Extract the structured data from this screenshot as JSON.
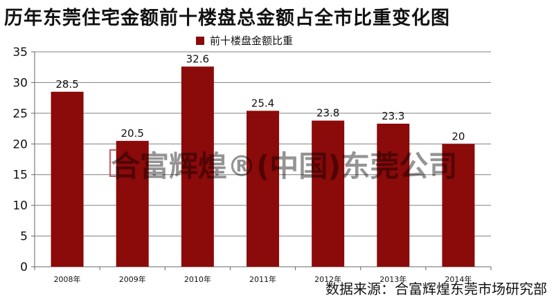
{
  "page": {
    "title": "历年东莞住宅金额前十楼盘总金额占全市比重变化图",
    "source": "数据来源：合富辉煌东莞市场研究部",
    "watermark": "合富辉煌®(中国)东莞公司"
  },
  "chart_data": {
    "type": "bar",
    "title": "历年东莞住宅金额前十楼盘总金额占全市比重变化图",
    "categories": [
      "2008年",
      "2009年",
      "2010年",
      "2011年",
      "2012年",
      "2013年",
      "2014年"
    ],
    "series": [
      {
        "name": "前十楼盘金额比重",
        "values": [
          28.5,
          20.5,
          32.6,
          25.4,
          23.8,
          23.3,
          20
        ]
      }
    ],
    "value_labels": [
      "28.5",
      "20.5",
      "32.6",
      "25.4",
      "23.8",
      "23.3",
      "20"
    ],
    "ylim": [
      0,
      35
    ],
    "yticks": [
      0,
      5,
      10,
      15,
      20,
      25,
      30,
      35
    ],
    "grid": true,
    "legend": "top-center",
    "colors": {
      "bar": "#8b0a0a",
      "grid": "#7f7f7f",
      "axis": "#666666"
    }
  }
}
